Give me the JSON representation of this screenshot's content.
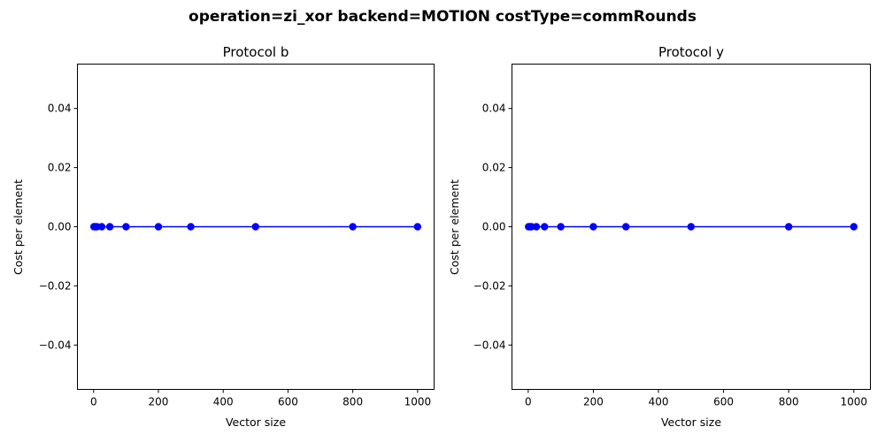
{
  "figure": {
    "suptitle": "operation=zi_xor backend=MOTION costType=commRounds"
  },
  "chart_data": [
    {
      "type": "line",
      "title": "Protocol b",
      "xlabel": "Vector size",
      "ylabel": "Cost per element",
      "x": [
        1,
        5,
        10,
        25,
        50,
        100,
        200,
        300,
        500,
        800,
        1000
      ],
      "y": [
        0,
        0,
        0,
        0,
        0,
        0,
        0,
        0,
        0,
        0,
        0
      ],
      "xlim": [
        -49.95,
        1050.95
      ],
      "ylim": [
        -0.055,
        0.055
      ],
      "xticks": [
        0,
        200,
        400,
        600,
        800,
        1000
      ],
      "yticks": [
        -0.04,
        -0.02,
        0.0,
        0.02,
        0.04
      ],
      "ytick_labels": [
        "−0.04",
        "−0.02",
        "0.00",
        "0.02",
        "0.04"
      ],
      "series_color": "#0000ff",
      "marker": "circle",
      "grid": false
    },
    {
      "type": "line",
      "title": "Protocol y",
      "xlabel": "Vector size",
      "ylabel": "Cost per element",
      "x": [
        1,
        5,
        10,
        25,
        50,
        100,
        200,
        300,
        500,
        800,
        1000
      ],
      "y": [
        0,
        0,
        0,
        0,
        0,
        0,
        0,
        0,
        0,
        0,
        0
      ],
      "xlim": [
        -49.95,
        1050.95
      ],
      "ylim": [
        -0.055,
        0.055
      ],
      "xticks": [
        0,
        200,
        400,
        600,
        800,
        1000
      ],
      "yticks": [
        -0.04,
        -0.02,
        0.0,
        0.02,
        0.04
      ],
      "ytick_labels": [
        "−0.04",
        "−0.02",
        "0.00",
        "0.02",
        "0.04"
      ],
      "series_color": "#0000ff",
      "marker": "circle",
      "grid": false
    }
  ]
}
